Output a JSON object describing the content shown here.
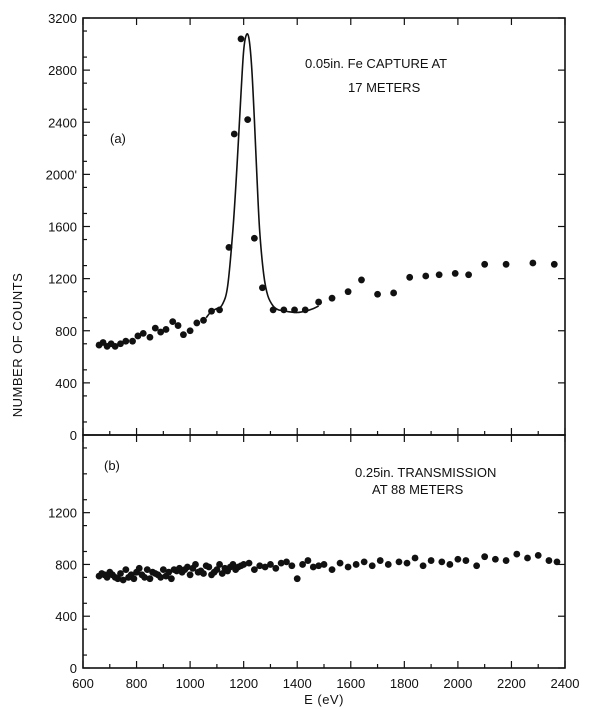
{
  "chart_data": {
    "type": "scatter",
    "xlabel": "E (eV)",
    "ylabel": "NUMBER OF COUNTS",
    "x_ticks": [
      "600",
      "800",
      "1000",
      "1200",
      "1400",
      "1600",
      "1800",
      "2000",
      "2200",
      "2400"
    ],
    "xlim": [
      600,
      2400
    ],
    "panels": [
      {
        "panel_label": "(a)",
        "annotation": [
          "0.05in.  Fe CAPTURE AT",
          "17 METERS"
        ],
        "ylim": [
          0,
          3200
        ],
        "y_ticks": [
          "0",
          "400",
          "800",
          "1200",
          "1600",
          "2000'",
          "2400",
          "2800",
          "3200"
        ],
        "series": [
          {
            "style": "points",
            "x": [
              660,
              675,
              690,
              705,
              720,
              740,
              760,
              785,
              805,
              825,
              850,
              870,
              890,
              910,
              935,
              955,
              975,
              1000,
              1025,
              1050,
              1080,
              1110,
              1145,
              1165,
              1190,
              1215,
              1240,
              1270,
              1310,
              1350,
              1390,
              1430,
              1480,
              1530,
              1590,
              1640,
              1700,
              1760,
              1820,
              1880,
              1930,
              1990,
              2040,
              2100,
              2180,
              2280,
              2360
            ],
            "y": [
              690,
              710,
              680,
              700,
              680,
              700,
              720,
              720,
              760,
              780,
              750,
              820,
              790,
              810,
              870,
              840,
              770,
              800,
              860,
              880,
              950,
              960,
              1440,
              2310,
              3040,
              2420,
              1510,
              1130,
              960,
              960,
              960,
              960,
              1020,
              1050,
              1100,
              1190,
              1080,
              1090,
              1210,
              1220,
              1230,
              1240,
              1230,
              1310,
              1310,
              1320,
              1310
            ]
          },
          {
            "style": "fit-curve",
            "x": [
              1060,
              1080,
              1100,
              1120,
              1140,
              1160,
              1175,
              1190,
              1200,
              1210,
              1220,
              1230,
              1240,
              1250,
              1260,
              1275,
              1290,
              1310,
              1330,
              1350,
              1370,
              1400,
              1430,
              1460,
              1480
            ],
            "y": [
              900,
              950,
              970,
              1000,
              1140,
              1580,
              2060,
              2620,
              2950,
              3070,
              3040,
              2820,
              2420,
              1960,
              1560,
              1230,
              1070,
              990,
              960,
              955,
              945,
              940,
              950,
              970,
              990
            ]
          }
        ]
      },
      {
        "panel_label": "(b)",
        "annotation": [
          "0.25in. TRANSMISSION",
          "AT 88 METERS"
        ],
        "ylim": [
          0,
          1800
        ],
        "y_ticks": [
          "0",
          "400",
          "800",
          "1200"
        ],
        "series": [
          {
            "style": "points",
            "x": [
              660,
              670,
              680,
              690,
              700,
              710,
              720,
              730,
              740,
              750,
              760,
              770,
              780,
              790,
              800,
              810,
              820,
              830,
              840,
              850,
              860,
              870,
              880,
              890,
              900,
              910,
              920,
              930,
              940,
              950,
              960,
              970,
              980,
              990,
              1000,
              1010,
              1020,
              1030,
              1040,
              1050,
              1060,
              1070,
              1080,
              1090,
              1100,
              1110,
              1120,
              1130,
              1140,
              1150,
              1160,
              1170,
              1180,
              1190,
              1200,
              1220,
              1240,
              1260,
              1280,
              1300,
              1320,
              1340,
              1360,
              1380,
              1400,
              1420,
              1440,
              1460,
              1480,
              1500,
              1530,
              1560,
              1590,
              1620,
              1650,
              1680,
              1710,
              1740,
              1780,
              1810,
              1840,
              1870,
              1900,
              1940,
              1970,
              2000,
              2030,
              2070,
              2100,
              2140,
              2180,
              2220,
              2260,
              2300,
              2340,
              2370
            ],
            "y": [
              710,
              730,
              720,
              700,
              740,
              720,
              700,
              690,
              730,
              680,
              760,
              700,
              720,
              690,
              740,
              770,
              720,
              700,
              760,
              690,
              740,
              730,
              720,
              700,
              760,
              710,
              740,
              690,
              760,
              750,
              770,
              740,
              760,
              780,
              720,
              770,
              800,
              740,
              750,
              730,
              790,
              780,
              720,
              740,
              760,
              800,
              730,
              770,
              750,
              780,
              800,
              760,
              780,
              790,
              800,
              810,
              760,
              790,
              780,
              800,
              770,
              810,
              820,
              790,
              690,
              800,
              830,
              780,
              790,
              800,
              760,
              810,
              780,
              800,
              820,
              790,
              830,
              800,
              820,
              810,
              850,
              790,
              830,
              820,
              800,
              840,
              830,
              790,
              860,
              840,
              830,
              880,
              850,
              870,
              830,
              820
            ]
          }
        ]
      }
    ]
  }
}
